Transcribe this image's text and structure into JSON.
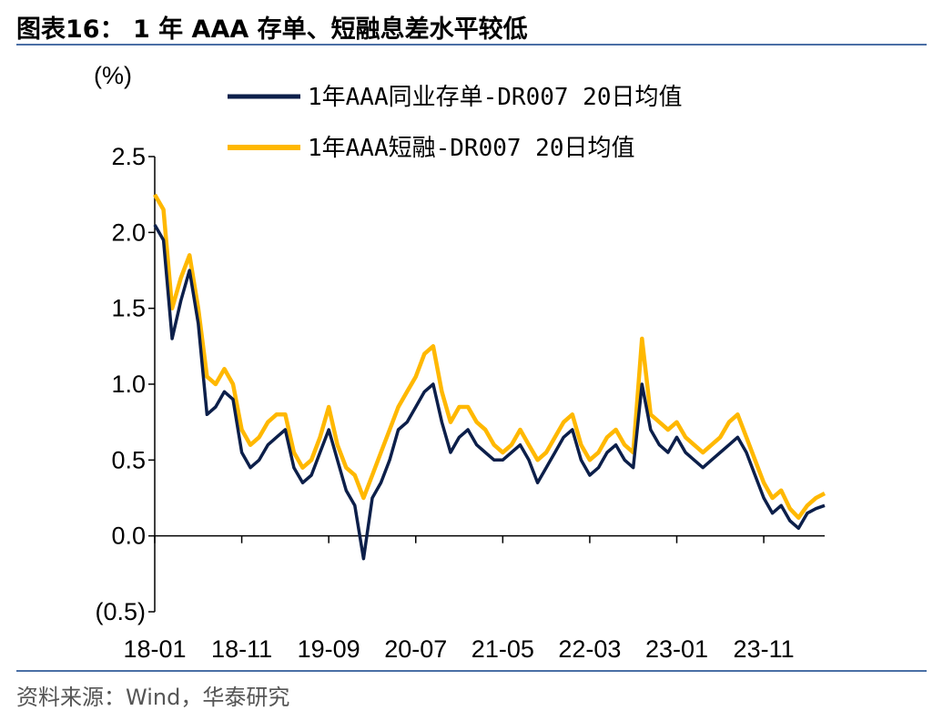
{
  "header": {
    "title": "图表16： 1 年 AAA 存单、短融息差水平较低"
  },
  "footer": {
    "source": "资料来源：Wind，华泰研究"
  },
  "colors": {
    "series1": "#0c1f4a",
    "series2": "#ffb800",
    "rule": "#4a6fa5"
  },
  "chart_data": {
    "type": "line",
    "ylabel": "(%)",
    "ylim": [
      -0.5,
      2.5
    ],
    "yticks": [
      {
        "value": 2.5,
        "label": "2.5"
      },
      {
        "value": 2.0,
        "label": "2.0"
      },
      {
        "value": 1.5,
        "label": "1.5"
      },
      {
        "value": 1.0,
        "label": "1.0"
      },
      {
        "value": 0.5,
        "label": "0.5"
      },
      {
        "value": 0.0,
        "label": "0.0"
      },
      {
        "value": -0.5,
        "label": "(0.5)"
      }
    ],
    "xticks": [
      "18-01",
      "18-11",
      "19-09",
      "20-07",
      "21-05",
      "22-03",
      "23-01",
      "23-11"
    ],
    "x_range": [
      "2018-01",
      "2024-06"
    ],
    "legend_position": "top",
    "grid": false,
    "series": [
      {
        "name": "1年AAA同业存单-DR007 20日均值",
        "x": [
          "2018-01",
          "2018-02",
          "2018-03",
          "2018-04",
          "2018-05",
          "2018-06",
          "2018-07",
          "2018-08",
          "2018-09",
          "2018-10",
          "2018-11",
          "2018-12",
          "2019-01",
          "2019-02",
          "2019-03",
          "2019-04",
          "2019-05",
          "2019-06",
          "2019-07",
          "2019-08",
          "2019-09",
          "2019-10",
          "2019-11",
          "2019-12",
          "2020-01",
          "2020-02",
          "2020-03",
          "2020-04",
          "2020-05",
          "2020-06",
          "2020-07",
          "2020-08",
          "2020-09",
          "2020-10",
          "2020-11",
          "2020-12",
          "2021-01",
          "2021-02",
          "2021-03",
          "2021-04",
          "2021-05",
          "2021-06",
          "2021-07",
          "2021-08",
          "2021-09",
          "2021-10",
          "2021-11",
          "2021-12",
          "2022-01",
          "2022-02",
          "2022-03",
          "2022-04",
          "2022-05",
          "2022-06",
          "2022-07",
          "2022-08",
          "2022-09",
          "2022-10",
          "2022-11",
          "2022-12",
          "2023-01",
          "2023-02",
          "2023-03",
          "2023-04",
          "2023-05",
          "2023-06",
          "2023-07",
          "2023-08",
          "2023-09",
          "2023-10",
          "2023-11",
          "2023-12",
          "2024-01",
          "2024-02",
          "2024-03",
          "2024-04",
          "2024-05",
          "2024-06"
        ],
        "values": [
          2.05,
          1.95,
          1.3,
          1.55,
          1.75,
          1.4,
          0.8,
          0.85,
          0.95,
          0.9,
          0.55,
          0.45,
          0.5,
          0.6,
          0.65,
          0.7,
          0.45,
          0.35,
          0.4,
          0.55,
          0.7,
          0.5,
          0.3,
          0.2,
          -0.15,
          0.25,
          0.35,
          0.5,
          0.7,
          0.75,
          0.85,
          0.95,
          1.0,
          0.75,
          0.55,
          0.65,
          0.7,
          0.6,
          0.55,
          0.5,
          0.5,
          0.55,
          0.6,
          0.5,
          0.35,
          0.45,
          0.55,
          0.65,
          0.7,
          0.5,
          0.4,
          0.45,
          0.55,
          0.6,
          0.5,
          0.45,
          1.0,
          0.7,
          0.6,
          0.55,
          0.65,
          0.55,
          0.5,
          0.45,
          0.5,
          0.55,
          0.6,
          0.65,
          0.55,
          0.4,
          0.25,
          0.15,
          0.2,
          0.1,
          0.05,
          0.15,
          0.18,
          0.2
        ]
      },
      {
        "name": "1年AAA短融-DR007 20日均值",
        "x": [
          "2018-01",
          "2018-02",
          "2018-03",
          "2018-04",
          "2018-05",
          "2018-06",
          "2018-07",
          "2018-08",
          "2018-09",
          "2018-10",
          "2018-11",
          "2018-12",
          "2019-01",
          "2019-02",
          "2019-03",
          "2019-04",
          "2019-05",
          "2019-06",
          "2019-07",
          "2019-08",
          "2019-09",
          "2019-10",
          "2019-11",
          "2019-12",
          "2020-01",
          "2020-02",
          "2020-03",
          "2020-04",
          "2020-05",
          "2020-06",
          "2020-07",
          "2020-08",
          "2020-09",
          "2020-10",
          "2020-11",
          "2020-12",
          "2021-01",
          "2021-02",
          "2021-03",
          "2021-04",
          "2021-05",
          "2021-06",
          "2021-07",
          "2021-08",
          "2021-09",
          "2021-10",
          "2021-11",
          "2021-12",
          "2022-01",
          "2022-02",
          "2022-03",
          "2022-04",
          "2022-05",
          "2022-06",
          "2022-07",
          "2022-08",
          "2022-09",
          "2022-10",
          "2022-11",
          "2022-12",
          "2023-01",
          "2023-02",
          "2023-03",
          "2023-04",
          "2023-05",
          "2023-06",
          "2023-07",
          "2023-08",
          "2023-09",
          "2023-10",
          "2023-11",
          "2023-12",
          "2024-01",
          "2024-02",
          "2024-03",
          "2024-04",
          "2024-05",
          "2024-06"
        ],
        "values": [
          2.25,
          2.15,
          1.5,
          1.7,
          1.85,
          1.5,
          1.05,
          1.0,
          1.1,
          1.0,
          0.7,
          0.6,
          0.65,
          0.75,
          0.8,
          0.8,
          0.55,
          0.45,
          0.5,
          0.65,
          0.85,
          0.6,
          0.45,
          0.4,
          0.25,
          0.4,
          0.55,
          0.7,
          0.85,
          0.95,
          1.05,
          1.2,
          1.25,
          0.95,
          0.75,
          0.85,
          0.85,
          0.75,
          0.7,
          0.6,
          0.55,
          0.6,
          0.7,
          0.6,
          0.5,
          0.55,
          0.65,
          0.75,
          0.8,
          0.6,
          0.5,
          0.55,
          0.65,
          0.7,
          0.6,
          0.55,
          1.3,
          0.8,
          0.75,
          0.7,
          0.75,
          0.65,
          0.6,
          0.55,
          0.6,
          0.65,
          0.75,
          0.8,
          0.65,
          0.5,
          0.35,
          0.25,
          0.3,
          0.18,
          0.12,
          0.2,
          0.25,
          0.28
        ]
      }
    ]
  }
}
